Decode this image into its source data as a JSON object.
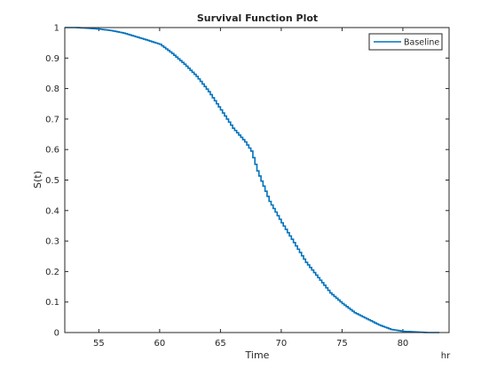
{
  "chart_data": {
    "type": "line",
    "title": "Survival Function Plot",
    "xlabel": "Time",
    "ylabel": "S(t)",
    "x_unit": "hr",
    "xlim": [
      52.2,
      83.8
    ],
    "ylim": [
      0,
      1
    ],
    "x_ticks": [
      55,
      60,
      65,
      70,
      75,
      80
    ],
    "y_ticks": [
      0,
      0.1,
      0.2,
      0.3,
      0.4,
      0.5,
      0.6,
      0.7,
      0.8,
      0.9,
      1
    ],
    "grid": false,
    "legend_position": "top-right",
    "series": [
      {
        "name": "Baseline",
        "color": "#0072BD",
        "points": [
          [
            52.2,
            1.0
          ],
          [
            53.0,
            1.0
          ],
          [
            54.0,
            0.998
          ],
          [
            55.0,
            0.995
          ],
          [
            56.0,
            0.99
          ],
          [
            57.0,
            0.982
          ],
          [
            58.0,
            0.97
          ],
          [
            59.0,
            0.958
          ],
          [
            60.0,
            0.945
          ],
          [
            61.0,
            0.915
          ],
          [
            62.0,
            0.88
          ],
          [
            63.0,
            0.84
          ],
          [
            64.0,
            0.79
          ],
          [
            65.0,
            0.73
          ],
          [
            66.0,
            0.67
          ],
          [
            67.0,
            0.625
          ],
          [
            67.5,
            0.595
          ],
          [
            68.0,
            0.53
          ],
          [
            69.0,
            0.43
          ],
          [
            70.0,
            0.36
          ],
          [
            71.0,
            0.295
          ],
          [
            72.0,
            0.23
          ],
          [
            73.0,
            0.18
          ],
          [
            74.0,
            0.13
          ],
          [
            75.0,
            0.095
          ],
          [
            76.0,
            0.065
          ],
          [
            77.0,
            0.045
          ],
          [
            78.0,
            0.025
          ],
          [
            79.0,
            0.01
          ],
          [
            80.0,
            0.004
          ],
          [
            81.0,
            0.002
          ],
          [
            82.0,
            0.0
          ],
          [
            83.0,
            0.0
          ]
        ]
      }
    ]
  }
}
